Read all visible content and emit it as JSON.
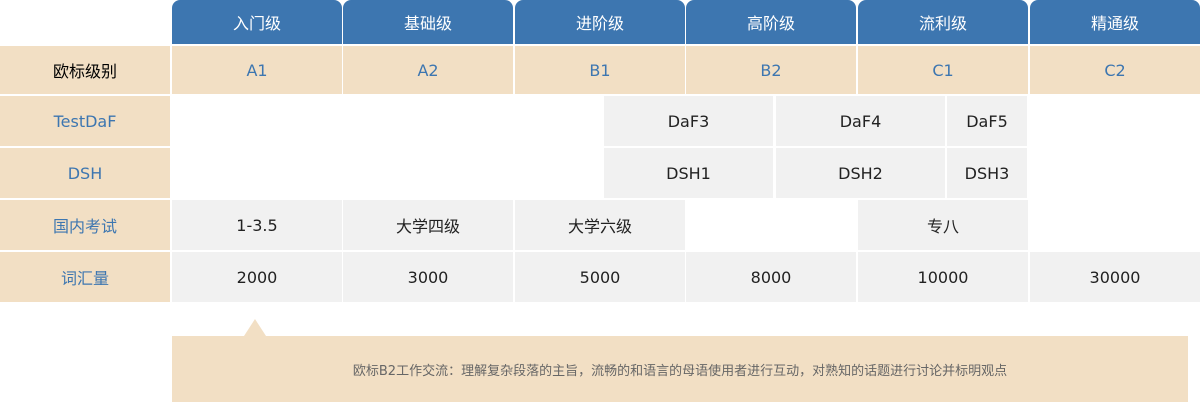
{
  "levels": [
    "入门级",
    "基础级",
    "进阶级",
    "高阶级",
    "流利级",
    "精通级"
  ],
  "rows": {
    "cefr": {
      "label": "欧标级别",
      "values": [
        "A1",
        "A2",
        "B1",
        "B2",
        "C1",
        "C2"
      ]
    },
    "testdaf": {
      "label": "TestDaF",
      "values": [
        "DaF3",
        "DaF4",
        "DaF5"
      ]
    },
    "dsh": {
      "label": "DSH",
      "values": [
        "DSH1",
        "DSH2",
        "DSH3"
      ]
    },
    "domestic": {
      "label": "国内考试",
      "values": [
        "1-3.5",
        "大学四级",
        "大学六级",
        "专八"
      ]
    },
    "vocab": {
      "label": "词汇量",
      "values": [
        "2000",
        "3000",
        "5000",
        "8000",
        "10000",
        "30000"
      ]
    }
  },
  "callout": "欧标B2工作交流：理解复杂段落的主旨，流畅的和语言的母语使用者进行互动，对熟知的话题进行讨论并标明观点",
  "colors": {
    "header": "#3d76b0",
    "beige": "#f2dfc4",
    "gray": "#f1f1f1"
  }
}
